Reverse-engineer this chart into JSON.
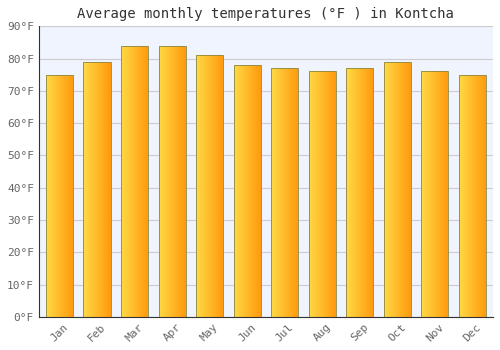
{
  "months": [
    "Jan",
    "Feb",
    "Mar",
    "Apr",
    "May",
    "Jun",
    "Jul",
    "Aug",
    "Sep",
    "Oct",
    "Nov",
    "Dec"
  ],
  "values": [
    75,
    79,
    84,
    84,
    81,
    78,
    77,
    76,
    77,
    79,
    76,
    75
  ],
  "title": "Average monthly temperatures (°F ) in Kontcha",
  "ylim": [
    0,
    90
  ],
  "yticks": [
    0,
    10,
    20,
    30,
    40,
    50,
    60,
    70,
    80,
    90
  ],
  "ytick_labels": [
    "0°F",
    "10°F",
    "20°F",
    "30°F",
    "40°F",
    "50°F",
    "60°F",
    "70°F",
    "80°F",
    "90°F"
  ],
  "background_color": "#FFFFFF",
  "plot_bg_color": "#F0F4FF",
  "grid_color": "#CCCCCC",
  "title_fontsize": 10,
  "tick_fontsize": 8,
  "bar_width": 0.72,
  "bar_color_left": "#FFD044",
  "bar_color_right": "#FFA500",
  "bar_edge_color": "#888855",
  "n_grad": 80
}
